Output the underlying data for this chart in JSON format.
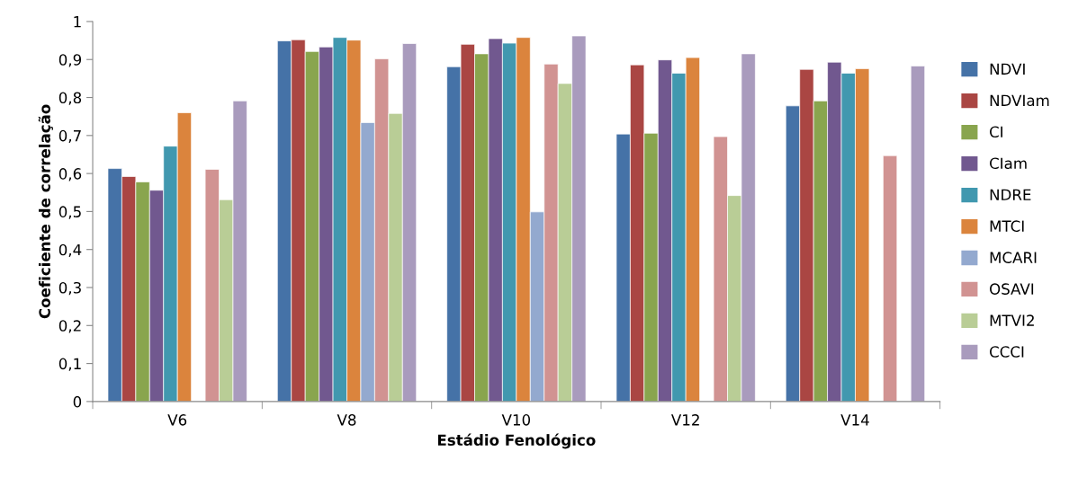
{
  "chart_data": {
    "type": "bar",
    "xlabel": "Estádio Fenológico",
    "ylabel": "Coeficiente de correlação",
    "categories": [
      "V6",
      "V8",
      "V10",
      "V12",
      "V14"
    ],
    "series": [
      {
        "name": "NDVI",
        "color": "#4572a7",
        "values": [
          0.613,
          0.949,
          0.881,
          0.704,
          0.778
        ]
      },
      {
        "name": "NDVIam",
        "color": "#aa4643",
        "values": [
          0.592,
          0.952,
          0.94,
          0.886,
          0.874
        ]
      },
      {
        "name": "CI",
        "color": "#89a54e",
        "values": [
          0.578,
          0.921,
          0.915,
          0.706,
          0.791
        ]
      },
      {
        "name": "CIam",
        "color": "#71588f",
        "values": [
          0.556,
          0.933,
          0.955,
          0.899,
          0.893
        ]
      },
      {
        "name": "NDRE",
        "color": "#4198af",
        "values": [
          0.672,
          0.958,
          0.943,
          0.864,
          0.864
        ]
      },
      {
        "name": "MTCI",
        "color": "#db843d",
        "values": [
          0.76,
          0.951,
          0.958,
          0.905,
          0.876
        ]
      },
      {
        "name": "MCARI",
        "color": "#93a9cf",
        "values": [
          null,
          0.734,
          0.499,
          null,
          null
        ]
      },
      {
        "name": "OSAVI",
        "color": "#d19392",
        "values": [
          0.611,
          0.902,
          0.888,
          0.697,
          0.647
        ]
      },
      {
        "name": "MTVI2",
        "color": "#b9cd96",
        "values": [
          0.531,
          0.758,
          0.837,
          0.542,
          null
        ]
      },
      {
        "name": "CCCI",
        "color": "#a99bbd",
        "values": [
          0.791,
          0.942,
          0.962,
          0.915,
          0.883
        ]
      }
    ],
    "ylim": [
      0,
      1
    ],
    "yticks": [
      0,
      {
        "value": 0.1,
        "label": "0,1"
      },
      {
        "value": 0.2,
        "label": "0,2"
      },
      {
        "value": 0.3,
        "label": "0,3"
      },
      {
        "value": 0.4,
        "label": "0,4"
      },
      {
        "value": 0.5,
        "label": "0,5"
      },
      {
        "value": 0.6,
        "label": "0,6"
      },
      {
        "value": 0.7,
        "label": "0,7"
      },
      {
        "value": 0.8,
        "label": "0,8"
      },
      {
        "value": 0.9,
        "label": "0,9"
      },
      1
    ],
    "grid": false,
    "legend": "right"
  }
}
